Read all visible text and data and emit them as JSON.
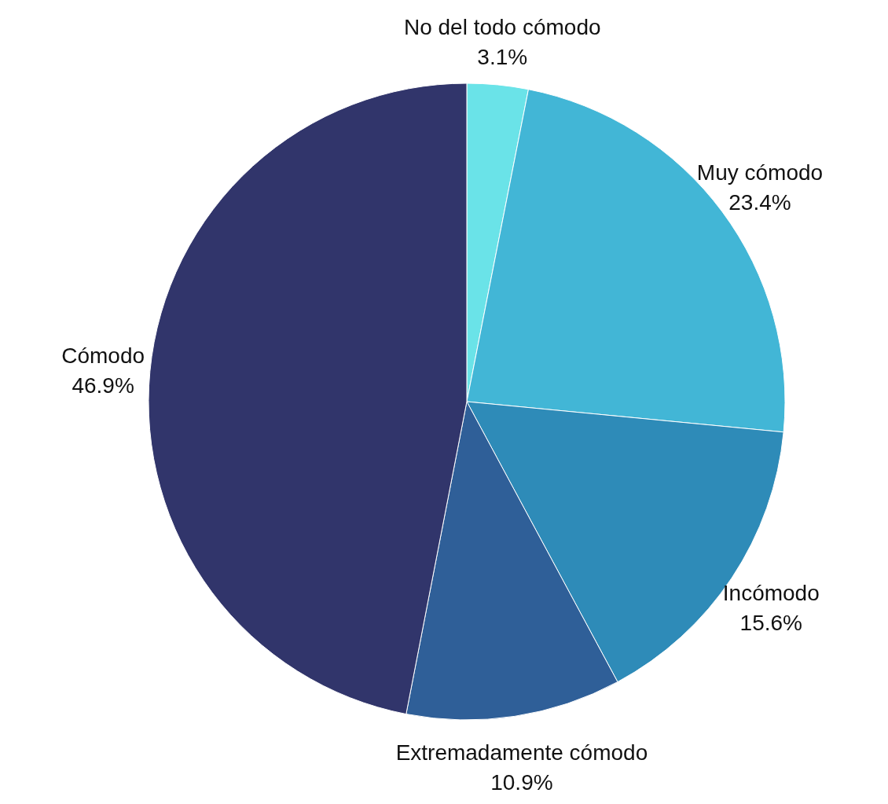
{
  "chart_data": {
    "type": "pie",
    "categories": [
      "No del todo cómodo",
      "Muy cómodo",
      "Incómodo",
      "Extremadamente cómodo",
      "Cómodo"
    ],
    "values": [
      3.1,
      23.4,
      15.6,
      10.9,
      46.9
    ],
    "colors": [
      "#6ae3e8",
      "#42b6d6",
      "#2e8bb8",
      "#2f5f98",
      "#31356b"
    ],
    "value_labels": [
      "3.1%",
      "23.4%",
      "15.6%",
      "10.9%",
      "46.9%"
    ]
  }
}
